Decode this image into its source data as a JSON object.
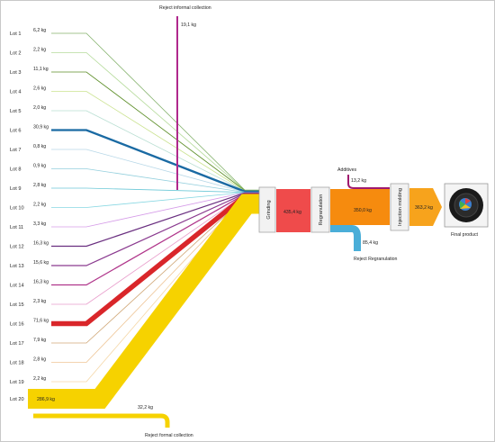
{
  "lots": [
    {
      "label": "Lot 1",
      "value": "6,2 kg",
      "color": "#5e9a3e"
    },
    {
      "label": "Lot 2",
      "value": "2,2 kg",
      "color": "#9ccf7a"
    },
    {
      "label": "Lot 3",
      "value": "11,1 kg",
      "color": "#5e8f2a"
    },
    {
      "label": "Lot 4",
      "value": "2,6 kg",
      "color": "#b8d86a"
    },
    {
      "label": "Lot 5",
      "value": "2,0 kg",
      "color": "#9fd3c2"
    },
    {
      "label": "Lot 6",
      "value": "30,9 kg",
      "color": "#1a6aa3"
    },
    {
      "label": "Lot 7",
      "value": "0,8 kg",
      "color": "#9ec9df"
    },
    {
      "label": "Lot 8",
      "value": "0,9 kg",
      "color": "#6fbfd2"
    },
    {
      "label": "Lot 9",
      "value": "2,8 kg",
      "color": "#3bb6c9"
    },
    {
      "label": "Lot 10",
      "value": "2,2 kg",
      "color": "#5fc9d8"
    },
    {
      "label": "Lot 11",
      "value": "3,3 kg",
      "color": "#c77ae0"
    },
    {
      "label": "Lot 12",
      "value": "16,3 kg",
      "color": "#6a2f80"
    },
    {
      "label": "Lot 13",
      "value": "15,6 kg",
      "color": "#8a3a8f"
    },
    {
      "label": "Lot 14",
      "value": "16,3 kg",
      "color": "#b0368b"
    },
    {
      "label": "Lot 15",
      "value": "2,3 kg",
      "color": "#e07ab8"
    },
    {
      "label": "Lot 16",
      "value": "71,6 kg",
      "color": "#d9262a"
    },
    {
      "label": "Lot 17",
      "value": "7,9 kg",
      "color": "#c08a4a"
    },
    {
      "label": "Lot 18",
      "value": "2,8 kg",
      "color": "#e8b070"
    },
    {
      "label": "Lot 19",
      "value": "2,2 kg",
      "color": "#f2c98a"
    },
    {
      "label": "Lot 20",
      "value": "286,9 kg",
      "color": "#f6d200"
    }
  ],
  "reject_informal": {
    "label": "Reject informal collection",
    "value": "19,1 kg",
    "color": "#b0288c"
  },
  "reject_formal": {
    "label": "Reject formal collection",
    "value": "32,2 kg",
    "color": "#f6d200"
  },
  "grinding": {
    "label": "Grinding"
  },
  "grinding_out": {
    "value": "435,4 kg",
    "color": "#ef4b4b"
  },
  "regranulation": {
    "label": "Regranulation"
  },
  "additives": {
    "label": "Additives",
    "value": "13,2 kg",
    "color": "#a0196e"
  },
  "reject_regranulation": {
    "label": "Reject Regranulation",
    "value": "85,4 kg",
    "color": "#4aaed8"
  },
  "regran_out": {
    "value": "350,0 kg",
    "color": "#f68b0e"
  },
  "injection": {
    "label": "Injection molding"
  },
  "injection_out": {
    "value": "363,2 kg",
    "color": "#f7a31c"
  },
  "final_product": {
    "label": "Final product"
  }
}
